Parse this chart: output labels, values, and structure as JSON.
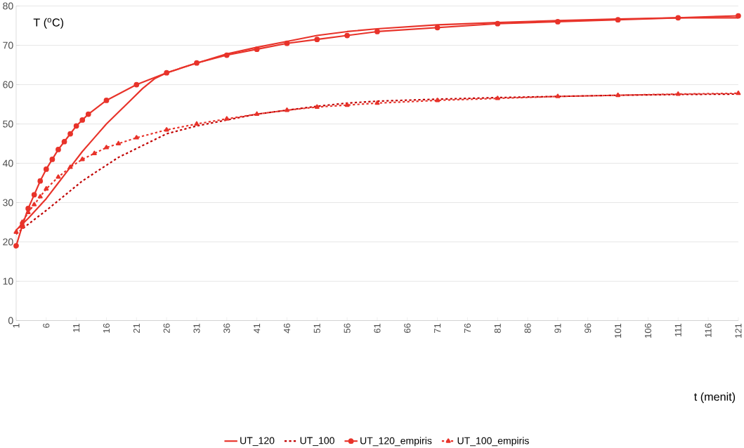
{
  "chart_data": {
    "type": "line",
    "xlabel": "t (menit)",
    "ylabel": "T ($^{o}$C)",
    "xlim": [
      1,
      121
    ],
    "xticks": [
      1,
      6,
      11,
      16,
      21,
      26,
      31,
      36,
      41,
      46,
      51,
      56,
      61,
      66,
      71,
      76,
      81,
      86,
      91,
      96,
      101,
      106,
      111,
      116,
      121
    ],
    "ylim": [
      0,
      80
    ],
    "yticks": [
      0,
      10,
      20,
      30,
      40,
      50,
      60,
      70,
      80
    ],
    "grid": "y",
    "legend": "bottom",
    "series": [
      {
        "name": "UT_120",
        "color": "#e8332a",
        "line_style": "solid",
        "marker": "none",
        "x": [
          1,
          3,
          6,
          8,
          10,
          12,
          14,
          16,
          18,
          20,
          22,
          24,
          26,
          30,
          36,
          41,
          46,
          51,
          56,
          61,
          71,
          81,
          91,
          101,
          111,
          121
        ],
        "values": [
          23,
          26,
          31,
          35,
          39,
          43,
          46.5,
          50,
          53,
          56,
          59,
          61.5,
          63,
          65,
          67.8,
          69.5,
          71,
          72.5,
          73.5,
          74.2,
          75.2,
          75.8,
          76.3,
          76.7,
          77,
          77
        ]
      },
      {
        "name": "UT_100",
        "color": "#c00000",
        "line_style": "dashed",
        "marker": "none",
        "x": [
          1,
          3,
          6,
          8,
          10,
          12,
          14,
          16,
          18,
          20,
          22,
          24,
          26,
          31,
          36,
          41,
          46,
          51,
          56,
          61,
          71,
          81,
          91,
          101,
          111,
          121
        ],
        "values": [
          22,
          24.5,
          28,
          30.5,
          33,
          35.5,
          37.5,
          39.5,
          41.5,
          43,
          44.5,
          46,
          47.5,
          49.5,
          51,
          52.5,
          53.5,
          54.5,
          55.3,
          55.8,
          56.3,
          56.7,
          57,
          57.3,
          57.5,
          57.6
        ]
      },
      {
        "name": "UT_120_empiris",
        "color": "#e8332a",
        "line_style": "solid",
        "marker": "circle",
        "x": [
          1,
          2,
          3,
          4,
          5,
          6,
          7,
          8,
          9,
          10,
          11,
          12,
          13,
          16,
          21,
          26,
          31,
          36,
          41,
          46,
          51,
          56,
          61,
          71,
          81,
          91,
          101,
          111,
          121
        ],
        "values": [
          19,
          24,
          28.5,
          32,
          35.5,
          38.5,
          41,
          43.5,
          45.5,
          47.5,
          49.5,
          51,
          52.5,
          56,
          60,
          63,
          65.5,
          67.5,
          69,
          70.5,
          71.5,
          72.5,
          73.5,
          74.5,
          75.5,
          76,
          76.5,
          77,
          77.5
        ]
      },
      {
        "name": "UT_100_empiris",
        "color": "#e8332a",
        "line_style": "dashed",
        "marker": "triangle",
        "x": [
          1,
          2,
          3,
          4,
          5,
          6,
          8,
          10,
          12,
          14,
          16,
          18,
          21,
          26,
          31,
          36,
          41,
          46,
          51,
          56,
          61,
          71,
          81,
          91,
          101,
          111,
          121
        ],
        "values": [
          22.5,
          25,
          27.5,
          29.5,
          31.5,
          33.5,
          36.5,
          39,
          41,
          42.5,
          44,
          45,
          46.5,
          48.5,
          50,
          51.3,
          52.5,
          53.5,
          54.3,
          54.8,
          55.3,
          56,
          56.5,
          57,
          57.3,
          57.6,
          57.8
        ]
      }
    ]
  }
}
